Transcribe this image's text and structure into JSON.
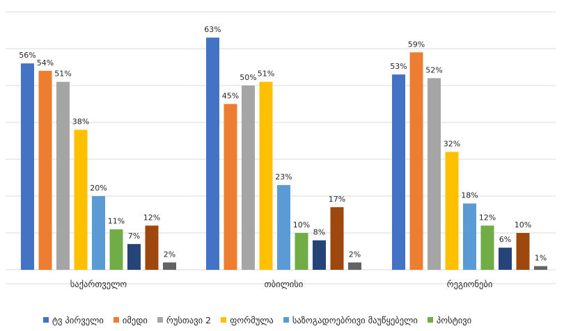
{
  "chart_data": {
    "type": "bar",
    "title": "",
    "xlabel": "",
    "ylabel": "",
    "ylim": [
      0,
      70
    ],
    "grid": true,
    "legend_position": "bottom",
    "categories": [
      "საქართველო",
      "თბილისი",
      "რეგიონები"
    ],
    "series": [
      {
        "name": "ტვ პირველი",
        "color": "#4472c4",
        "values": [
          56,
          63,
          53
        ]
      },
      {
        "name": "იმედი",
        "color": "#ed7d31",
        "values": [
          54,
          45,
          59
        ]
      },
      {
        "name": "რუსთავი 2",
        "color": "#a5a5a5",
        "values": [
          51,
          50,
          52
        ]
      },
      {
        "name": "ფორმულა",
        "color": "#ffc000",
        "values": [
          38,
          51,
          32
        ]
      },
      {
        "name": "საზოგადოებრივი მაუწყებელი",
        "color": "#5b9bd5",
        "values": [
          20,
          23,
          18
        ]
      },
      {
        "name": "პოსტივი",
        "color": "#70ad47",
        "values": [
          11,
          10,
          12
        ]
      },
      {
        "name": "",
        "color": "#264478",
        "values": [
          7,
          8,
          6
        ]
      },
      {
        "name": "",
        "color": "#9e480e",
        "values": [
          12,
          17,
          10
        ]
      },
      {
        "name": "",
        "color": "#636363",
        "values": [
          2,
          2,
          1
        ]
      }
    ],
    "value_suffix": "%"
  }
}
